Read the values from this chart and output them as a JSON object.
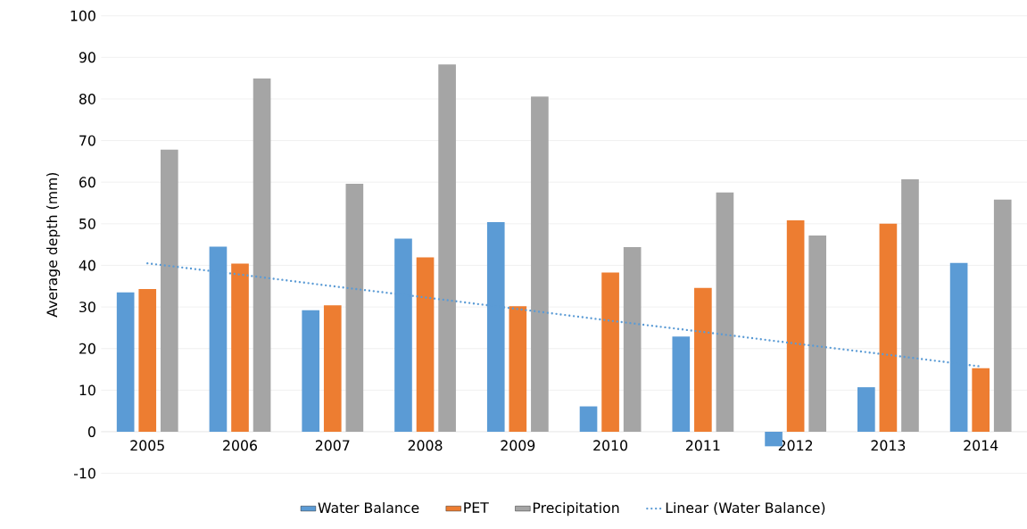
{
  "chart_data": {
    "type": "bar",
    "ylabel": "Average depth (mm)",
    "categories": [
      "2005",
      "2006",
      "2007",
      "2008",
      "2009",
      "2010",
      "2011",
      "2012",
      "2013",
      "2014"
    ],
    "series": [
      {
        "name": "Water Balance",
        "color": "#5b9bd5",
        "values": [
          33.5,
          44.5,
          29.2,
          46.4,
          50.4,
          6.1,
          22.9,
          -3.5,
          10.7,
          40.6
        ]
      },
      {
        "name": "PET",
        "color": "#ed7d31",
        "values": [
          34.3,
          40.4,
          30.4,
          41.9,
          30.2,
          38.3,
          34.6,
          50.8,
          50.0,
          15.3
        ]
      },
      {
        "name": "Precipitation",
        "color": "#a5a5a5",
        "values": [
          67.8,
          84.9,
          59.6,
          88.3,
          80.6,
          44.4,
          57.5,
          47.2,
          60.7,
          55.8
        ]
      },
      {
        "name": "Linear (Water Balance)",
        "type": "line",
        "line_style": "dotted",
        "color": "#5b9bd5",
        "values": [
          40.5,
          37.8,
          35.0,
          32.3,
          29.5,
          26.7,
          24.0,
          21.2,
          18.5,
          15.7
        ]
      }
    ],
    "ylim": [
      -10,
      100
    ],
    "yticks": [
      -10,
      0,
      10,
      20,
      30,
      40,
      50,
      60,
      70,
      80,
      90,
      100
    ],
    "grid": "y",
    "legend": "bottom",
    "marker": "none"
  }
}
